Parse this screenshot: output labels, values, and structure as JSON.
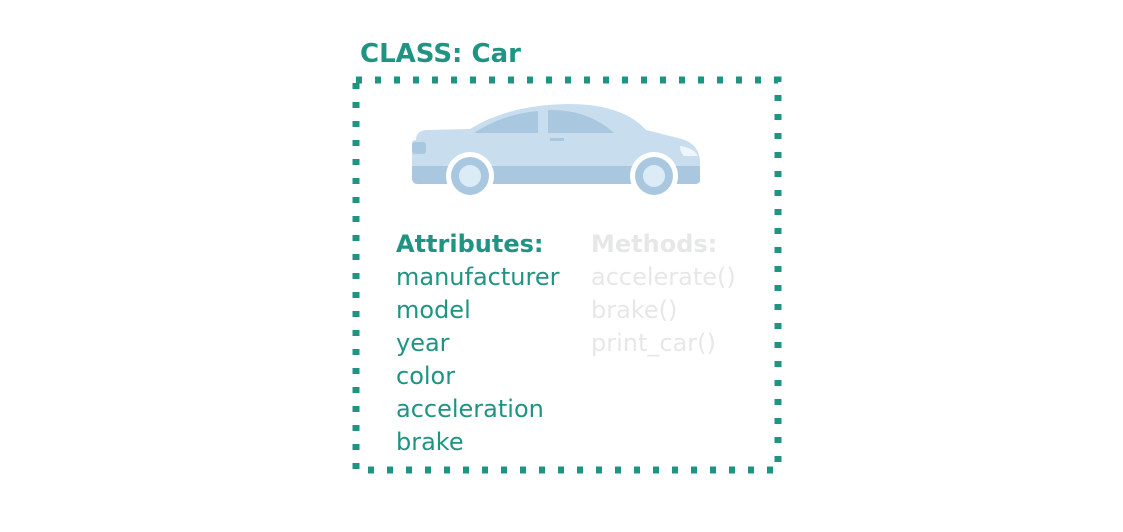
{
  "class_box": {
    "title": "CLASS: Car",
    "color": "#1f9483"
  },
  "icon": {
    "name": "car-icon",
    "colors": {
      "body": "#c8deee",
      "shade": "#a9c8e0",
      "window": "#a9c8e0",
      "wheel": "#a9c8e0",
      "hubcap": "#dcecf7"
    }
  },
  "attributes": {
    "heading": "Attributes:",
    "items": [
      "manufacturer",
      "model",
      "year",
      "color",
      "acceleration",
      "brake"
    ]
  },
  "methods": {
    "heading": "Methods:",
    "items": [
      "accelerate()",
      "brake()",
      "print_car()"
    ],
    "color": "#e6e8e8"
  }
}
